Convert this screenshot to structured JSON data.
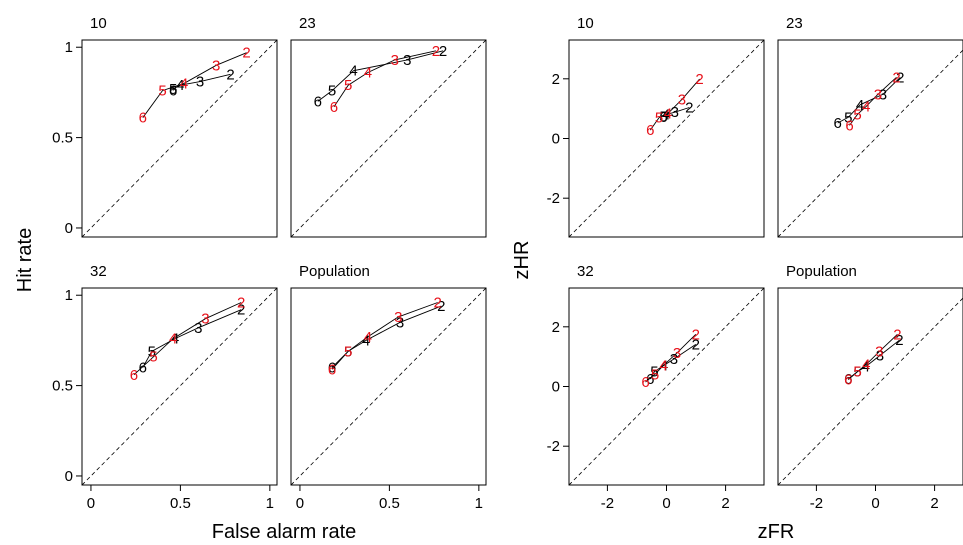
{
  "colors": {
    "black_series": "#000000",
    "red_series": "#e8121b"
  },
  "axis_titles": {
    "roc_y": "Hit rate",
    "roc_x": "False alarm rate",
    "z_y": "zHR",
    "z_x": "zFR"
  },
  "chart_data": [
    {
      "type": "line",
      "group": "roc",
      "title": "10",
      "xlim": [
        0,
        1
      ],
      "ylim": [
        0,
        1
      ],
      "xticks": [
        "0",
        "0.5",
        "1"
      ],
      "yticks": [
        "0",
        "0.5",
        "1"
      ],
      "diagonal": true,
      "series": [
        {
          "color": "#000000",
          "labels": [
            "2",
            "3",
            "4",
            "5",
            "6"
          ],
          "x": [
            0.78,
            0.61,
            0.5,
            0.46,
            0.46
          ],
          "y": [
            0.85,
            0.81,
            0.79,
            0.77,
            0.76
          ]
        },
        {
          "color": "#e8121b",
          "labels": [
            "2",
            "3",
            "4",
            "5",
            "6"
          ],
          "x": [
            0.87,
            0.7,
            0.52,
            0.4,
            0.29
          ],
          "y": [
            0.97,
            0.9,
            0.8,
            0.76,
            0.61
          ]
        }
      ]
    },
    {
      "type": "line",
      "group": "roc",
      "title": "23",
      "xlim": [
        0,
        1
      ],
      "ylim": [
        0,
        1
      ],
      "xticks": [
        "0",
        "0.5",
        "1"
      ],
      "yticks": [
        "0",
        "0.5",
        "1"
      ],
      "diagonal": true,
      "series": [
        {
          "color": "#000000",
          "labels": [
            "2",
            "3",
            "4",
            "5",
            "6"
          ],
          "x": [
            0.8,
            0.6,
            0.3,
            0.18,
            0.1
          ],
          "y": [
            0.98,
            0.93,
            0.87,
            0.76,
            0.7
          ]
        },
        {
          "color": "#e8121b",
          "labels": [
            "2",
            "3",
            "4",
            "5",
            "6"
          ],
          "x": [
            0.76,
            0.53,
            0.38,
            0.27,
            0.19
          ],
          "y": [
            0.98,
            0.93,
            0.86,
            0.79,
            0.67
          ]
        }
      ]
    },
    {
      "type": "line",
      "group": "roc",
      "title": "32",
      "xlim": [
        0,
        1
      ],
      "ylim": [
        0,
        1
      ],
      "xticks": [
        "0",
        "0.5",
        "1"
      ],
      "yticks": [
        "0",
        "0.5",
        "1"
      ],
      "diagonal": true,
      "series": [
        {
          "color": "#000000",
          "labels": [
            "2",
            "3",
            "4",
            "5",
            "6"
          ],
          "x": [
            0.84,
            0.6,
            0.47,
            0.34,
            0.29
          ],
          "y": [
            0.92,
            0.82,
            0.76,
            0.69,
            0.6
          ]
        },
        {
          "color": "#e8121b",
          "labels": [
            "2",
            "3",
            "4",
            "5",
            "6"
          ],
          "x": [
            0.84,
            0.64,
            0.46,
            0.35,
            0.24
          ],
          "y": [
            0.96,
            0.87,
            0.76,
            0.66,
            0.56
          ]
        }
      ]
    },
    {
      "type": "line",
      "group": "roc",
      "title": "Population",
      "xlim": [
        0,
        1
      ],
      "ylim": [
        0,
        1
      ],
      "xticks": [
        "0",
        "0.5",
        "1"
      ],
      "yticks": [
        "0",
        "0.5",
        "1"
      ],
      "diagonal": true,
      "series": [
        {
          "color": "#000000",
          "labels": [
            "2",
            "3",
            "4",
            "5",
            "6"
          ],
          "x": [
            0.79,
            0.56,
            0.37,
            0.27,
            0.18
          ],
          "y": [
            0.94,
            0.85,
            0.75,
            0.69,
            0.6
          ]
        },
        {
          "color": "#e8121b",
          "labels": [
            "2",
            "3",
            "4",
            "5",
            "6"
          ],
          "x": [
            0.77,
            0.55,
            0.38,
            0.27,
            0.18
          ],
          "y": [
            0.96,
            0.88,
            0.77,
            0.69,
            0.59
          ]
        }
      ]
    },
    {
      "type": "line",
      "group": "z",
      "title": "10",
      "xlim": [
        -3.3,
        3.3
      ],
      "ylim": [
        -3.3,
        3.3
      ],
      "xticks": [
        "-2",
        "0",
        "2"
      ],
      "yticks": [
        "-2",
        "0",
        "2"
      ],
      "diagonal": true,
      "series": [
        {
          "color": "#000000",
          "labels": [
            "2",
            "3",
            "4",
            "5",
            "6"
          ],
          "x": [
            0.77,
            0.28,
            -0.01,
            -0.1,
            -0.1
          ],
          "y": [
            1.04,
            0.88,
            0.8,
            0.74,
            0.72
          ]
        },
        {
          "color": "#e8121b",
          "labels": [
            "2",
            "3",
            "4",
            "5",
            "6"
          ],
          "x": [
            1.12,
            0.52,
            0.05,
            -0.25,
            -0.55
          ],
          "y": [
            1.99,
            1.31,
            0.84,
            0.7,
            0.28
          ]
        }
      ]
    },
    {
      "type": "line",
      "group": "z",
      "title": "23",
      "xlim": [
        -3.3,
        3.3
      ],
      "ylim": [
        -3.3,
        3.3
      ],
      "xticks": [
        "-2",
        "0",
        "2"
      ],
      "yticks": [
        "-2",
        "0",
        "2"
      ],
      "diagonal": true,
      "series": [
        {
          "color": "#000000",
          "labels": [
            "2",
            "3",
            "4",
            "5",
            "6"
          ],
          "x": [
            0.84,
            0.25,
            -0.52,
            -0.92,
            -1.28
          ],
          "y": [
            2.05,
            1.48,
            1.13,
            0.71,
            0.52
          ]
        },
        {
          "color": "#e8121b",
          "labels": [
            "2",
            "3",
            "4",
            "5",
            "6"
          ],
          "x": [
            0.71,
            0.08,
            -0.31,
            -0.61,
            -0.88
          ],
          "y": [
            2.05,
            1.48,
            1.08,
            0.81,
            0.44
          ]
        }
      ]
    },
    {
      "type": "line",
      "group": "z",
      "title": "32",
      "xlim": [
        -3.3,
        3.3
      ],
      "ylim": [
        -3.3,
        3.3
      ],
      "xticks": [
        "-2",
        "0",
        "2"
      ],
      "yticks": [
        "-2",
        "0",
        "2"
      ],
      "diagonal": true,
      "series": [
        {
          "color": "#000000",
          "labels": [
            "2",
            "3",
            "4",
            "5",
            "6"
          ],
          "x": [
            0.99,
            0.25,
            -0.08,
            -0.41,
            -0.55
          ],
          "y": [
            1.41,
            0.92,
            0.71,
            0.5,
            0.25
          ]
        },
        {
          "color": "#e8121b",
          "labels": [
            "2",
            "3",
            "4",
            "5",
            "6"
          ],
          "x": [
            0.99,
            0.36,
            -0.1,
            -0.39,
            -0.71
          ],
          "y": [
            1.75,
            1.13,
            0.71,
            0.41,
            0.15
          ]
        }
      ]
    },
    {
      "type": "line",
      "group": "z",
      "title": "Population",
      "xlim": [
        -3.3,
        3.3
      ],
      "ylim": [
        -3.3,
        3.3
      ],
      "xticks": [
        "-2",
        "0",
        "2"
      ],
      "yticks": [
        "-2",
        "0",
        "2"
      ],
      "diagonal": true,
      "series": [
        {
          "color": "#000000",
          "labels": [
            "2",
            "3",
            "4",
            "5",
            "6"
          ],
          "x": [
            0.81,
            0.15,
            -0.33,
            -0.61,
            -0.92
          ],
          "y": [
            1.55,
            1.04,
            0.67,
            0.5,
            0.25
          ]
        },
        {
          "color": "#e8121b",
          "labels": [
            "2",
            "3",
            "4",
            "5",
            "6"
          ],
          "x": [
            0.74,
            0.13,
            -0.31,
            -0.61,
            -0.92
          ],
          "y": [
            1.75,
            1.17,
            0.74,
            0.5,
            0.23
          ]
        }
      ]
    }
  ]
}
